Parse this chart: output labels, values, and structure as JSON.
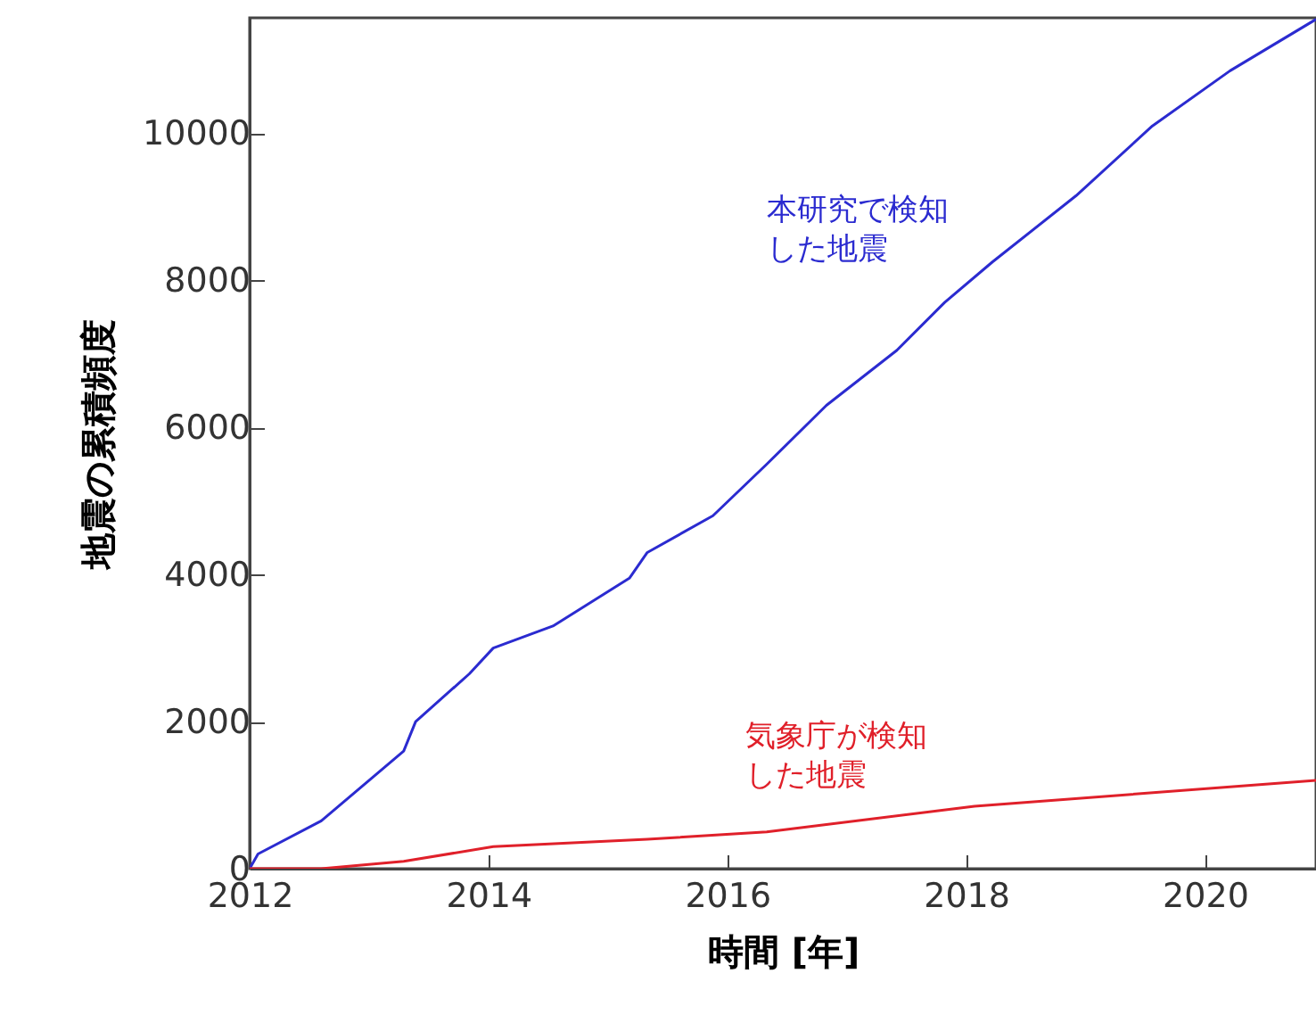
{
  "chart_data": {
    "type": "line",
    "xlabel": "時間 [年]",
    "ylabel": "地震の累積頻度",
    "xlim": [
      2012,
      2020.93
    ],
    "ylim": [
      0,
      11570
    ],
    "xticks": [
      2012,
      2014,
      2016,
      2018,
      2020
    ],
    "yticks": [
      0,
      2000,
      4000,
      6000,
      8000,
      10000
    ],
    "line_style": "solid",
    "series": [
      {
        "name": "本研究で検知した地震",
        "color": "#2b2bd0",
        "x": [
          2012,
          2012.07,
          2012.6,
          2013.29,
          2013.39,
          2013.84,
          2014.04,
          2014.54,
          2015.18,
          2015.33,
          2015.88,
          2016.33,
          2016.83,
          2017.42,
          2017.82,
          2018.22,
          2018.92,
          2019.56,
          2020.21,
          2020.93
        ],
        "values": [
          0,
          200,
          650,
          1600,
          2000,
          2650,
          3000,
          3300,
          3950,
          4300,
          4800,
          5500,
          6300,
          7050,
          7700,
          8250,
          9150,
          10100,
          10850,
          11550
        ]
      },
      {
        "name": "気象庁が検知した地震",
        "color": "#e0202a",
        "x": [
          2012,
          2012.6,
          2013.29,
          2014.04,
          2015.33,
          2016.33,
          2018.07,
          2020.93
        ],
        "values": [
          0,
          0,
          100,
          300,
          400,
          500,
          850,
          1200
        ]
      }
    ]
  }
}
